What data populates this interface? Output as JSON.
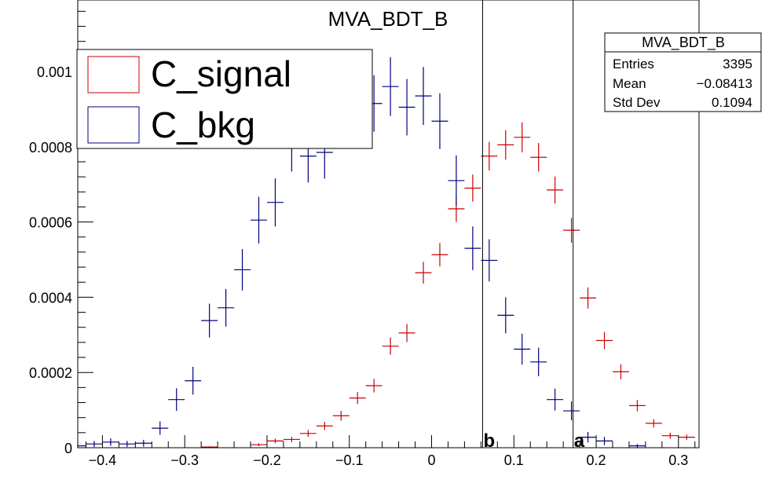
{
  "chart_data": {
    "type": "scatter",
    "title": "MVA_BDT_B",
    "xlim": [
      -0.43,
      0.325
    ],
    "ylim": [
      0,
      0.00119
    ],
    "x_ticks": [
      {
        "v": -0.4,
        "label": "−0.4"
      },
      {
        "v": -0.3,
        "label": "−0.3"
      },
      {
        "v": -0.2,
        "label": "−0.2"
      },
      {
        "v": -0.1,
        "label": "−0.1"
      },
      {
        "v": 0,
        "label": "0"
      },
      {
        "v": 0.1,
        "label": "0.1"
      },
      {
        "v": 0.2,
        "label": "0.2"
      },
      {
        "v": 0.3,
        "label": "0.3"
      }
    ],
    "y_ticks": [
      {
        "v": 0,
        "label": "0"
      },
      {
        "v": 0.0002,
        "label": "0.0002"
      },
      {
        "v": 0.0004,
        "label": "0.0004"
      },
      {
        "v": 0.0006,
        "label": "0.0006"
      },
      {
        "v": 0.0008,
        "label": "0.0008"
      },
      {
        "v": 0.001,
        "label": "0.001"
      }
    ],
    "bin_half_width": 0.01,
    "series": [
      {
        "name": "C_signal",
        "color": "#cc0000",
        "x": [
          -0.27,
          -0.21,
          -0.19,
          -0.17,
          -0.15,
          -0.13,
          -0.11,
          -0.09,
          -0.07,
          -0.05,
          -0.03,
          -0.01,
          0.01,
          0.03,
          0.05,
          0.07,
          0.09,
          0.11,
          0.13,
          0.15,
          0.17,
          0.19,
          0.21,
          0.23,
          0.25,
          0.27,
          0.29,
          0.31
        ],
        "y": [
          2e-06,
          8e-06,
          1.8e-05,
          2.2e-05,
          3.8e-05,
          5.8e-05,
          8.5e-05,
          0.000132,
          0.000165,
          0.00027,
          0.000305,
          0.000465,
          0.000513,
          0.000635,
          0.00069,
          0.000775,
          0.000805,
          0.000825,
          0.000772,
          0.000685,
          0.000578,
          0.000398,
          0.000285,
          0.000202,
          0.000112,
          6.5e-05,
          3.2e-05,
          2.8e-05
        ],
        "err": [
          2e-06,
          4e-06,
          6e-06,
          7e-06,
          9e-06,
          1.1e-05,
          1.3e-05,
          1.6e-05,
          1.8e-05,
          2.3e-05,
          2.4e-05,
          2.9e-05,
          3.1e-05,
          3.5e-05,
          3.6e-05,
          3.8e-05,
          3.9e-05,
          4e-05,
          3.8e-05,
          3.6e-05,
          3.3e-05,
          2.8e-05,
          2.3e-05,
          2e-05,
          1.5e-05,
          1.1e-05,
          8e-06,
          7e-06
        ]
      },
      {
        "name": "C_bkg",
        "color": "#000080",
        "x": [
          -0.43,
          -0.41,
          -0.39,
          -0.37,
          -0.35,
          -0.33,
          -0.31,
          -0.29,
          -0.27,
          -0.25,
          -0.23,
          -0.21,
          -0.19,
          -0.17,
          -0.15,
          -0.13,
          -0.11,
          -0.09,
          -0.07,
          -0.05,
          -0.03,
          -0.01,
          0.01,
          0.03,
          0.05,
          0.07,
          0.09,
          0.11,
          0.13,
          0.15,
          0.17,
          0.19,
          0.21,
          0.25
        ],
        "y": [
          5e-06,
          1e-05,
          1.5e-05,
          1e-05,
          1.2e-05,
          5.2e-05,
          0.000128,
          0.000178,
          0.000338,
          0.000372,
          0.000473,
          0.000605,
          0.000652,
          0.000805,
          0.000775,
          0.000785,
          0.000875,
          0.00093,
          0.000915,
          0.00096,
          0.000905,
          0.000935,
          0.000868,
          0.00071,
          0.00053,
          0.000498,
          0.000352,
          0.000262,
          0.000228,
          0.000128,
          9.8e-05,
          2.8e-05,
          1.8e-05,
          5e-06
        ],
        "err": [
          5e-06,
          8e-06,
          1e-05,
          8e-06,
          9e-06,
          1.8e-05,
          3e-05,
          3.7e-05,
          4.5e-05,
          5e-05,
          5.5e-05,
          6.2e-05,
          6.4e-05,
          7.1e-05,
          7e-05,
          7e-05,
          7.4e-05,
          7.6e-05,
          7.5e-05,
          7.8e-05,
          7.5e-05,
          7.7e-05,
          7.4e-05,
          6.7e-05,
          5.8e-05,
          5.6e-05,
          4.8e-05,
          4.1e-05,
          3.8e-05,
          2.9e-05,
          2.5e-05,
          1.4e-05,
          1.1e-05,
          5e-06
        ]
      }
    ],
    "cut_lines": [
      {
        "x": 0.062,
        "label": "b"
      },
      {
        "x": 0.172,
        "label": "a"
      }
    ],
    "legend": {
      "placement": "top-left",
      "entries": [
        "C_signal",
        "C_bkg"
      ]
    },
    "stats_box": {
      "title": "MVA_BDT_B",
      "rows": [
        {
          "label": "Entries",
          "value": "3395"
        },
        {
          "label": "Mean",
          "value": "−0.08413"
        },
        {
          "label": "Std Dev",
          "value": "0.1094"
        }
      ]
    },
    "grid": false
  }
}
